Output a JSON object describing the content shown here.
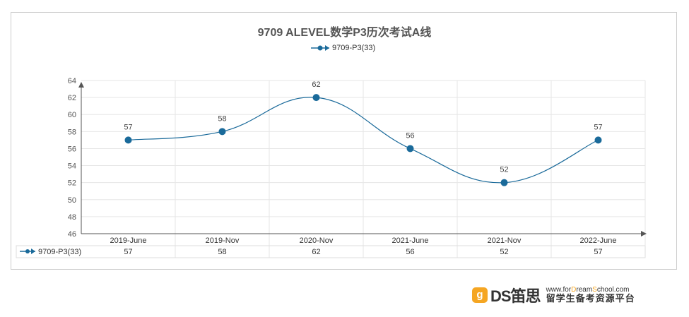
{
  "chart_data": {
    "type": "line",
    "title": "9709 ALEVEL数学P3历次考试A线",
    "categories": [
      "2019-June",
      "2019-Nov",
      "2020-Nov",
      "2021-June",
      "2021-Nov",
      "2022-June"
    ],
    "series": [
      {
        "name": "9709-P3(33)",
        "values": [
          57,
          58,
          62,
          56,
          52,
          57
        ],
        "color": "#1a6a9a"
      }
    ],
    "ylim": [
      46,
      64
    ],
    "yticks": [
      46,
      48,
      50,
      52,
      54,
      56,
      58,
      60,
      62,
      64
    ],
    "grid": true,
    "legend": "top",
    "smooth": true,
    "data_table": true
  },
  "logo": {
    "icon": "g",
    "brand": "DS笛思",
    "url_pre": "www.for",
    "url_d": "D",
    "url_mid": "ream",
    "url_s": "S",
    "url_post": "chool.com",
    "slogan": "留学生备考资源平台"
  }
}
